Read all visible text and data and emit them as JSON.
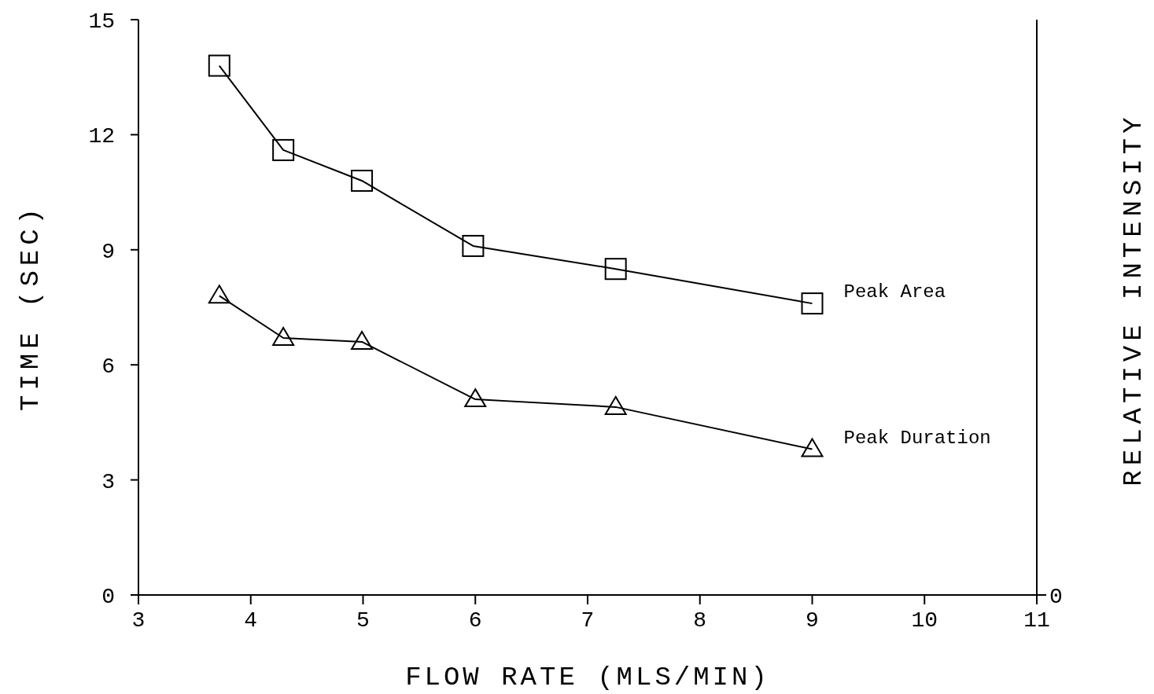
{
  "chart_data": {
    "type": "line",
    "xlabel": "FLOW RATE (MLS/MIN)",
    "ylabel": "TIME (SEC)",
    "y2label": "RELATIVE INTENSITY",
    "xlim": [
      3,
      11
    ],
    "xticks": [
      3,
      4,
      5,
      6,
      7,
      8,
      9,
      10,
      11
    ],
    "ylim": [
      0,
      15
    ],
    "yticks": [
      0,
      3,
      6,
      9,
      12,
      15
    ],
    "annotations": [
      "0"
    ],
    "grid": false,
    "series": [
      {
        "name": "Peak Area",
        "color": "#000000",
        "marker": "square",
        "x": [
          3.72,
          4.29,
          4.99,
          5.98,
          7.25,
          9
        ],
        "values": [
          13.8,
          11.6,
          10.8,
          9.1,
          8.5,
          7.6
        ]
      },
      {
        "name": "Peak Duration",
        "color": "#000000",
        "marker": "triangle",
        "x": [
          3.72,
          4.29,
          4.99,
          6,
          7.25,
          9
        ],
        "values": [
          7.8,
          6.7,
          6.6,
          5.1,
          4.9,
          3.8
        ]
      }
    ]
  }
}
